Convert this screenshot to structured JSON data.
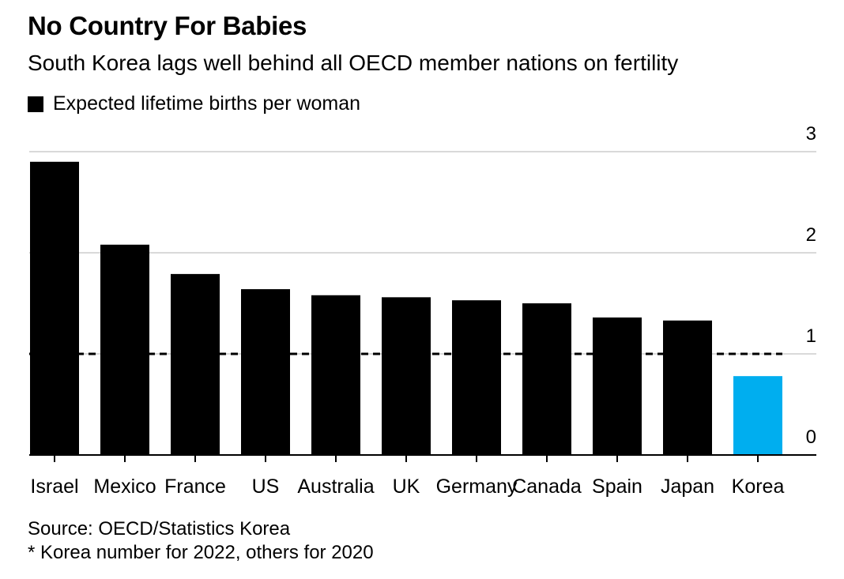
{
  "title": "No Country For Babies",
  "subtitle": "South Korea lags well behind all OECD member nations on fertility",
  "source": "Source: OECD/Statistics Korea",
  "note": "* Korea number for 2022, others for 2020",
  "colors": {
    "bar": "#000000",
    "highlight": "#00aeef",
    "grid": "#d9d9d9",
    "reference": "#000000"
  },
  "chart_data": {
    "type": "bar",
    "legend": [
      {
        "label": "Expected lifetime births per woman",
        "color": "#000000"
      }
    ],
    "categories": [
      "Israel",
      "Mexico",
      "France",
      "US",
      "Australia",
      "UK",
      "Germany",
      "Canada",
      "Spain",
      "Japan",
      "Korea"
    ],
    "values": [
      2.9,
      2.08,
      1.79,
      1.64,
      1.58,
      1.56,
      1.53,
      1.5,
      1.36,
      1.33,
      0.78
    ],
    "highlight_index": 10,
    "ylim": [
      0,
      3
    ],
    "yticks": [
      "0",
      "1",
      "2",
      "3"
    ],
    "reference_line": 1.0,
    "grid": true
  }
}
